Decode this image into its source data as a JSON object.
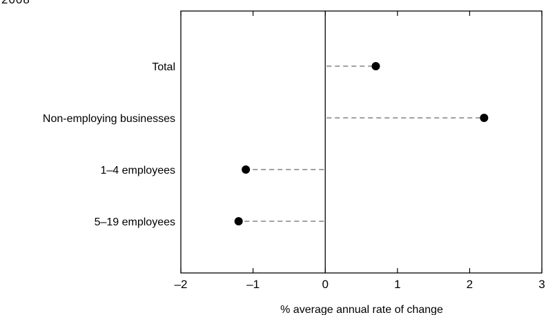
{
  "title_fragment": "2008",
  "chart_data": {
    "type": "scatter",
    "subtype": "dot-plot",
    "orientation": "horizontal",
    "categories": [
      "Total",
      "Non-employing businesses",
      "1–4 employees",
      "5–19 employees"
    ],
    "values": [
      0.7,
      2.2,
      -1.1,
      -1.2
    ],
    "xlabel": "% average annual rate of change",
    "xlim": [
      -2,
      3
    ],
    "xticks": [
      -2,
      -1,
      0,
      1,
      2,
      3
    ],
    "xtick_labels": [
      "–2",
      "–1",
      "0",
      "1",
      "2",
      "3"
    ],
    "zero_line": true,
    "connector_style": "dashed",
    "grid": false,
    "legend": "none",
    "colors": {
      "marker": "#000000",
      "connector": "#808080",
      "axis": "#000000"
    }
  }
}
